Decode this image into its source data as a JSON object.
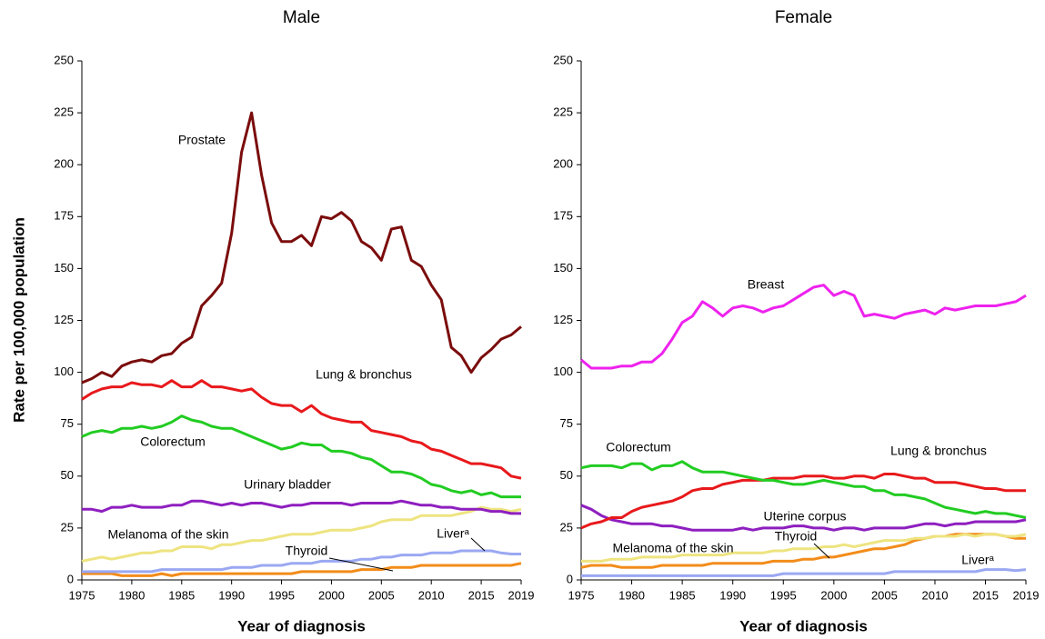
{
  "chart_data": [
    {
      "type": "line",
      "title": "Male",
      "x_label": "Year of diagnosis",
      "y_label": "Rate per 100,000 population",
      "x": [
        1975,
        1976,
        1977,
        1978,
        1979,
        1980,
        1981,
        1982,
        1983,
        1984,
        1985,
        1986,
        1987,
        1988,
        1989,
        1990,
        1991,
        1992,
        1993,
        1994,
        1995,
        1996,
        1997,
        1998,
        1999,
        2000,
        2001,
        2002,
        2003,
        2004,
        2005,
        2006,
        2007,
        2008,
        2009,
        2010,
        2011,
        2012,
        2013,
        2014,
        2015,
        2016,
        2017,
        2018,
        2019
      ],
      "xlim": [
        1975,
        2019
      ],
      "xticks": [
        1975,
        1980,
        1985,
        1990,
        1995,
        2000,
        2005,
        2010,
        2015,
        2019
      ],
      "ylim": [
        0,
        250
      ],
      "yticks": [
        0,
        25,
        50,
        75,
        100,
        125,
        150,
        175,
        200,
        225,
        250
      ],
      "series": [
        {
          "name": "Prostate",
          "color": "#7b0c0c",
          "values": [
            95,
            97,
            100,
            98,
            103,
            105,
            106,
            105,
            108,
            109,
            114,
            117,
            132,
            137,
            143,
            167,
            206,
            225,
            195,
            172,
            163,
            163,
            166,
            161,
            175,
            174,
            177,
            173,
            163,
            160,
            154,
            169,
            170,
            154,
            151,
            142,
            135,
            112,
            108,
            100,
            107,
            111,
            116,
            118,
            122
          ]
        },
        {
          "name": "Lung & bronchus",
          "color": "#e8191c",
          "values": [
            87,
            90,
            92,
            93,
            93,
            95,
            94,
            94,
            93,
            96,
            93,
            93,
            96,
            93,
            93,
            92,
            91,
            92,
            88,
            85,
            84,
            84,
            81,
            84,
            80,
            78,
            77,
            76,
            76,
            72,
            71,
            70,
            69,
            67,
            66,
            63,
            62,
            60,
            58,
            56,
            56,
            55,
            54,
            50,
            49
          ]
        },
        {
          "name": "Colorectum",
          "color": "#22cc22",
          "values": [
            69,
            71,
            72,
            71,
            73,
            73,
            74,
            73,
            74,
            76,
            79,
            77,
            76,
            74,
            73,
            73,
            71,
            69,
            67,
            65,
            63,
            64,
            66,
            65,
            65,
            62,
            62,
            61,
            59,
            58,
            55,
            52,
            52,
            51,
            49,
            46,
            45,
            43,
            42,
            43,
            41,
            42,
            40,
            40,
            40
          ]
        },
        {
          "name": "Urinary bladder",
          "color": "#8e1fbf",
          "values": [
            34,
            34,
            33,
            35,
            35,
            36,
            35,
            35,
            35,
            36,
            36,
            38,
            38,
            37,
            36,
            37,
            36,
            37,
            37,
            36,
            35,
            36,
            36,
            37,
            37,
            37,
            37,
            36,
            37,
            37,
            37,
            37,
            38,
            37,
            36,
            36,
            35,
            35,
            34,
            34,
            34,
            33,
            33,
            32,
            32
          ]
        },
        {
          "name": "Melanoma of the skin",
          "color": "#eee480",
          "values": [
            9,
            10,
            11,
            10,
            11,
            12,
            13,
            13,
            14,
            14,
            16,
            16,
            16,
            15,
            17,
            17,
            18,
            19,
            19,
            20,
            21,
            22,
            22,
            22,
            23,
            24,
            24,
            24,
            25,
            26,
            28,
            29,
            29,
            29,
            31,
            31,
            31,
            31,
            32,
            33,
            35,
            34,
            34,
            33,
            34
          ]
        },
        {
          "name": "Liverᵃ",
          "color": "#9aa8f2",
          "values": [
            4,
            4,
            4,
            4,
            4,
            4,
            4,
            4,
            5,
            5,
            5,
            5,
            5,
            5,
            5,
            6,
            6,
            6,
            7,
            7,
            7,
            8,
            8,
            8,
            9,
            9,
            9,
            9,
            10,
            10,
            11,
            11,
            12,
            12,
            12,
            13,
            13,
            13,
            14,
            14,
            14,
            14,
            13,
            12.5,
            12.5
          ]
        },
        {
          "name": "Thyroid",
          "color": "#f28c1a",
          "values": [
            3,
            3,
            3,
            3,
            2,
            2,
            2,
            2,
            3,
            2,
            3,
            3,
            3,
            3,
            3,
            3,
            3,
            3,
            3,
            3,
            3,
            3,
            4,
            4,
            4,
            4,
            4,
            4,
            5,
            5,
            5,
            6,
            6,
            6,
            7,
            7,
            7,
            7,
            7,
            7,
            7,
            7,
            7,
            7,
            8
          ]
        }
      ]
    },
    {
      "type": "line",
      "title": "Female",
      "x_label": "Year of diagnosis",
      "x": [
        1975,
        1976,
        1977,
        1978,
        1979,
        1980,
        1981,
        1982,
        1983,
        1984,
        1985,
        1986,
        1987,
        1988,
        1989,
        1990,
        1991,
        1992,
        1993,
        1994,
        1995,
        1996,
        1997,
        1998,
        1999,
        2000,
        2001,
        2002,
        2003,
        2004,
        2005,
        2006,
        2007,
        2008,
        2009,
        2010,
        2011,
        2012,
        2013,
        2014,
        2015,
        2016,
        2017,
        2018,
        2019
      ],
      "xlim": [
        1975,
        2019
      ],
      "xticks": [
        1975,
        1980,
        1985,
        1990,
        1995,
        2000,
        2005,
        2010,
        2015,
        2019
      ],
      "ylim": [
        0,
        250
      ],
      "yticks": [
        0,
        25,
        50,
        75,
        100,
        125,
        150,
        175,
        200,
        225,
        250
      ],
      "series": [
        {
          "name": "Breast",
          "color": "#ee22ee",
          "values": [
            106,
            102,
            102,
            102,
            103,
            103,
            105,
            105,
            109,
            116,
            124,
            127,
            134,
            131,
            127,
            131,
            132,
            131,
            129,
            131,
            132,
            135,
            138,
            141,
            142,
            137,
            139,
            137,
            127,
            128,
            127,
            126,
            128,
            129,
            130,
            128,
            131,
            130,
            131,
            132,
            132,
            132,
            133,
            134,
            137
          ]
        },
        {
          "name": "Colorectum",
          "color": "#22cc22",
          "values": [
            54,
            55,
            55,
            55,
            54,
            56,
            56,
            53,
            55,
            55,
            57,
            54,
            52,
            52,
            52,
            51,
            50,
            49,
            48,
            48,
            47,
            46,
            46,
            47,
            48,
            47,
            46,
            45,
            45,
            43,
            43,
            41,
            41,
            40,
            39,
            37,
            35,
            34,
            33,
            32,
            33,
            32,
            32,
            31,
            30
          ]
        },
        {
          "name": "Lung & bronchus",
          "color": "#e8191c",
          "values": [
            25,
            27,
            28,
            30,
            30,
            33,
            35,
            36,
            37,
            38,
            40,
            43,
            44,
            44,
            46,
            47,
            48,
            48,
            48,
            49,
            49,
            49,
            50,
            50,
            50,
            49,
            49,
            50,
            50,
            49,
            51,
            51,
            50,
            49,
            49,
            47,
            47,
            47,
            46,
            45,
            44,
            44,
            43,
            43,
            43
          ]
        },
        {
          "name": "Uterine corpus",
          "color": "#8e1fbf",
          "values": [
            36,
            34,
            31,
            29,
            28,
            27,
            27,
            27,
            26,
            26,
            25,
            24,
            24,
            24,
            24,
            24,
            25,
            24,
            25,
            25,
            25,
            26,
            26,
            25,
            25,
            24,
            25,
            25,
            24,
            25,
            25,
            25,
            25,
            26,
            27,
            27,
            26,
            27,
            27,
            28,
            28,
            28,
            28,
            28,
            29
          ]
        },
        {
          "name": "Melanoma of the skin",
          "color": "#eee480",
          "values": [
            9,
            9,
            9,
            10,
            10,
            10,
            11,
            11,
            11,
            11,
            12,
            12,
            12,
            12,
            12,
            13,
            13,
            13,
            13,
            14,
            14,
            15,
            15,
            15,
            16,
            16,
            17,
            16,
            17,
            18,
            19,
            19,
            19,
            20,
            20,
            21,
            21,
            21,
            22,
            21,
            22,
            22,
            21,
            21,
            22
          ]
        },
        {
          "name": "Thyroid",
          "color": "#f28c1a",
          "values": [
            6,
            7,
            7,
            7,
            6,
            6,
            6,
            6,
            7,
            7,
            7,
            7,
            7,
            8,
            8,
            8,
            8,
            8,
            8,
            9,
            9,
            9,
            10,
            10,
            11,
            11,
            12,
            13,
            14,
            15,
            15,
            16,
            17,
            19,
            20,
            21,
            21,
            22,
            22,
            22,
            22,
            22,
            21,
            20,
            20
          ]
        },
        {
          "name": "Liverᵃ",
          "color": "#9aa8f2",
          "values": [
            2,
            2,
            2,
            2,
            2,
            2,
            2,
            2,
            2,
            2,
            2,
            2,
            2,
            2,
            2,
            2,
            2,
            2,
            2,
            2,
            3,
            3,
            3,
            3,
            3,
            3,
            3,
            3,
            3,
            3,
            3,
            4,
            4,
            4,
            4,
            4,
            4,
            4,
            4,
            4,
            5,
            5,
            5,
            4.5,
            5
          ]
        }
      ]
    }
  ]
}
